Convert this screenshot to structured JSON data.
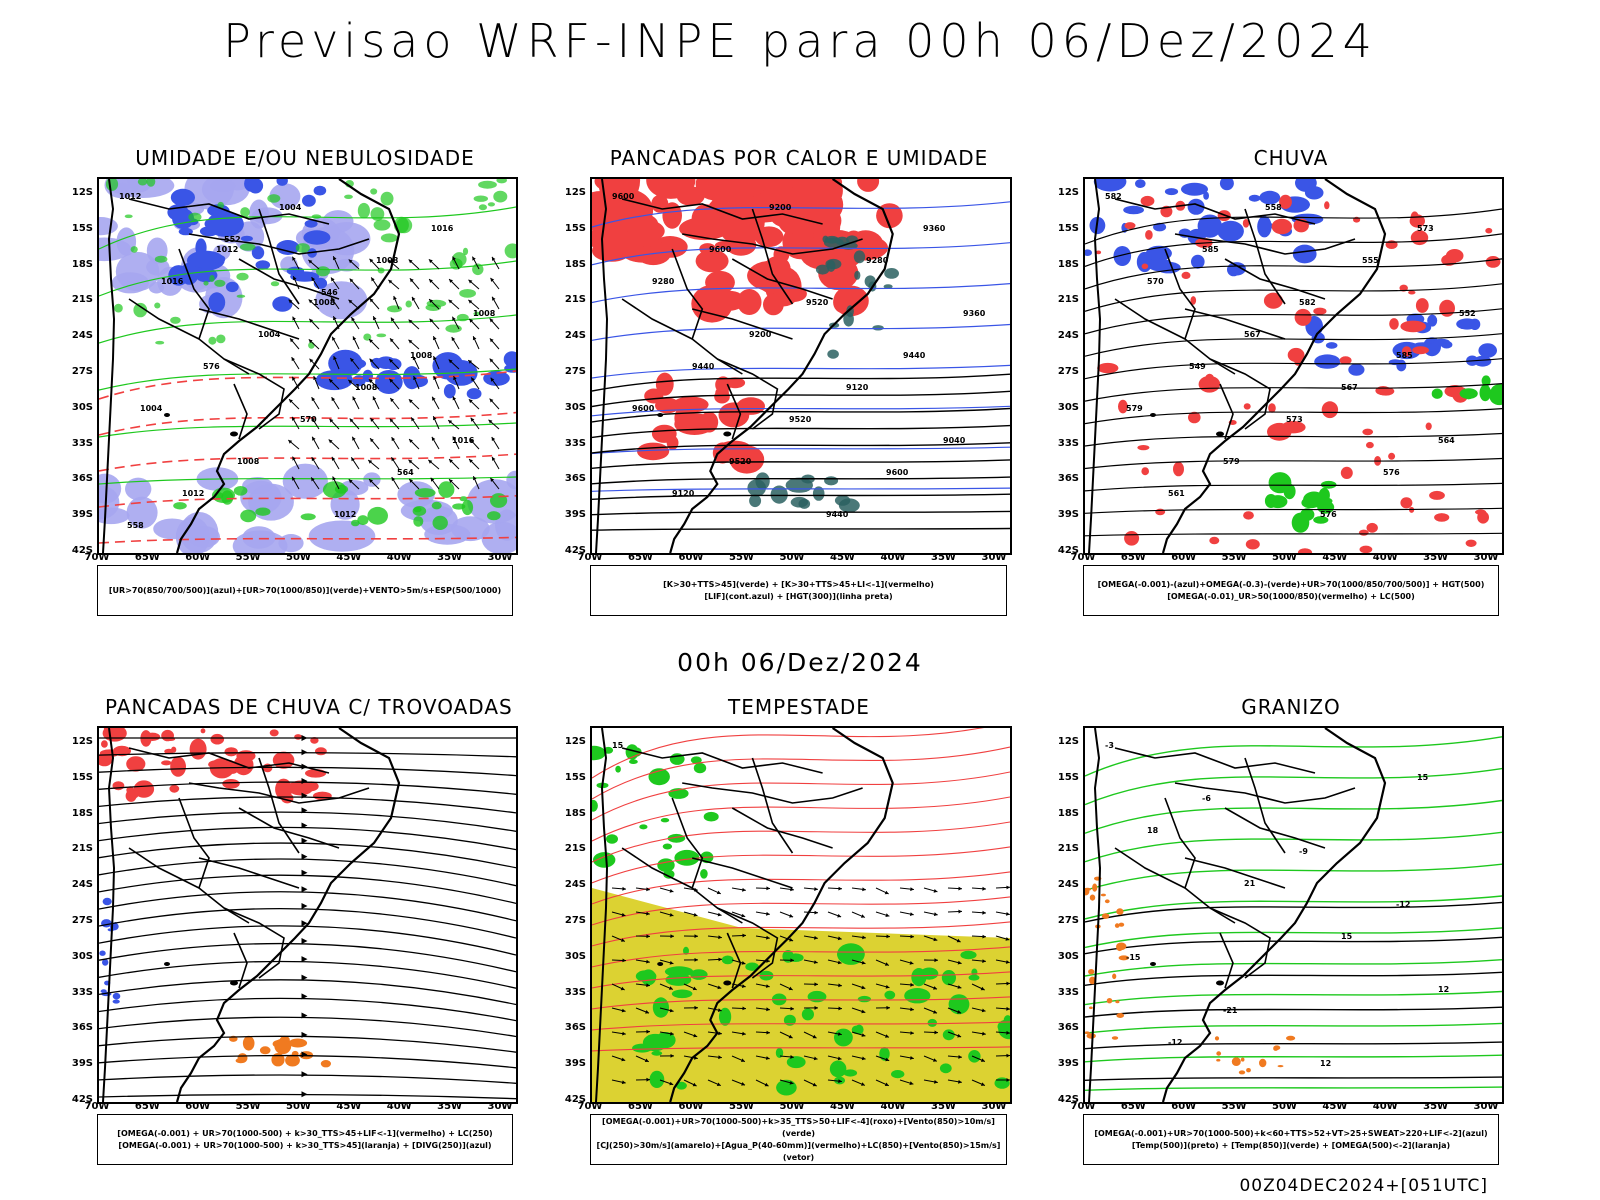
{
  "title": "Previsao WRF-INPE  para 00h 06/Dez/2024",
  "mid_date": "00h 06/Dez/2024",
  "footer": "00Z04DEC2024+[051UTC]",
  "axes": {
    "lat_labels": [
      "12S",
      "15S",
      "18S",
      "21S",
      "24S",
      "27S",
      "30S",
      "33S",
      "36S",
      "39S",
      "42S"
    ],
    "lon_labels": [
      "70W",
      "65W",
      "60W",
      "55W",
      "50W",
      "45W",
      "40W",
      "35W",
      "30W"
    ]
  },
  "panels": [
    {
      "title": "UMIDADE E/OU NEBULOSIDADE",
      "legend": [
        "[UR>70(850/700/500)](azul)+[UR>70(1000/850)](verde)+VENTO>5m/s+ESP(500/1000)"
      ],
      "contour_labels": [
        "1012",
        "1012",
        "1008",
        "1008",
        "1004",
        "1008",
        "1012",
        "1016",
        "1016",
        "1004",
        "1008",
        "1016",
        "1012",
        "1004",
        "1008",
        "1008",
        "576",
        "570",
        "564",
        "558",
        "552",
        "546"
      ]
    },
    {
      "title": "PANCADAS POR CALOR E UMIDADE",
      "legend": [
        "[K>30+TTS>45](verde) + [K>30+TTS>45+LI<-1](vermelho)",
        "[LIF](cont.azul) + [HGT(300)](linha preta)"
      ],
      "contour_labels": [
        "9600",
        "9600",
        "9520",
        "9440",
        "9600",
        "9520",
        "9440",
        "9360",
        "9280",
        "9200",
        "9120",
        "9040",
        "9120",
        "9200",
        "9280",
        "9360",
        "9440",
        "9520",
        "9600"
      ]
    },
    {
      "title": "CHUVA",
      "legend": [
        "[OMEGA(-0.001)-(azul)+OMEGA(-0.3)-(verde)+UR>70(1000/850/700/500)] + HGT(500)",
        "[OMEGA(-0.01)_UR>50(1000/850)(vermelho) + LC(500)"
      ],
      "contour_labels": [
        "582",
        "585",
        "582",
        "585",
        "579",
        "579",
        "576",
        "573",
        "570",
        "567",
        "567",
        "564",
        "561",
        "558",
        "555",
        "552",
        "549",
        "573",
        "576"
      ]
    },
    {
      "title": "PANCADAS DE CHUVA C/ TROVOADAS",
      "legend": [
        "[OMEGA(-0.001) + UR>70(1000-500) + k>30_TTS>45+LIF<-1](vermelho) + LC(250)",
        "[OMEGA(-0.001) + UR>70(1000-500) + k>30_TTS>45](laranja) + [DIVG(250)](azul)"
      ],
      "contour_labels": []
    },
    {
      "title": "TEMPESTADE",
      "legend": [
        "[OMEGA(-0.001)+UR>70(1000-500)+k>35_TTS>50+LIF<-4](roxo)+[Vento(850)>10m/s](verde)",
        "[CJ(250)>30m/s](amarelo)+[Agua_P(40-60mm)](vermelho)+LC(850)+[Vento(850)>15m/s](vetor)"
      ],
      "contour_labels": [
        "15"
      ]
    },
    {
      "title": "GRANIZO",
      "legend": [
        "[OMEGA(-0.001)+UR>70(1000-500)+k<60+TTS>52+VT>25+SWEAT>220+LIF<-2](azul)",
        "[Temp(500)](preto) + [Temp(850)](verde) + [OMEGA(500)<-2](laranja)"
      ],
      "contour_labels": [
        "-3",
        "-6",
        "-9",
        "-12",
        "-15",
        "-21",
        "12",
        "15",
        "18",
        "21",
        "15",
        "12",
        "-12"
      ]
    }
  ],
  "colors": {
    "blue": "#3a55e6",
    "lightblue": "#a6a6f0",
    "green": "#1ec81e",
    "red": "#f04040",
    "orange": "#f07a20",
    "yellow": "#dcd232",
    "teal": "#2a6060",
    "black": "#000000"
  }
}
